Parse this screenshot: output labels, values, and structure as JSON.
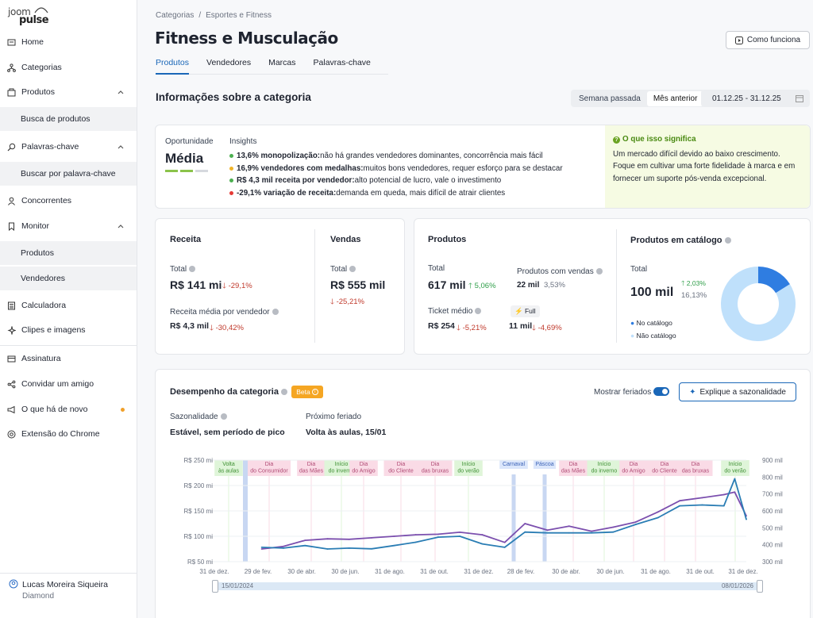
{
  "logo": {
    "line1": "joom",
    "line2": "pulse"
  },
  "sidebar": {
    "items": [
      {
        "label": "Home",
        "icon": "home-icon"
      },
      {
        "label": "Categorias",
        "icon": "sitemap-icon"
      },
      {
        "label": "Produtos",
        "icon": "box-icon"
      },
      {
        "label": "Busca de produtos"
      },
      {
        "label": "Palavras-chave",
        "icon": "search-icon"
      },
      {
        "label": "Buscar por palavra-chave"
      },
      {
        "label": "Concorrentes",
        "icon": "user-icon"
      },
      {
        "label": "Monitor",
        "icon": "bookmark-icon"
      },
      {
        "label": "Produtos"
      },
      {
        "label": "Vendedores"
      },
      {
        "label": "Calculadora",
        "icon": "calculator-icon"
      },
      {
        "label": "Clipes e imagens",
        "icon": "sparkle-icon"
      },
      {
        "label": "Assinatura",
        "icon": "card-icon"
      },
      {
        "label": "Convidar um amigo",
        "icon": "share-icon"
      },
      {
        "label": "O que há de novo",
        "icon": "megaphone-icon"
      },
      {
        "label": "Extensão do Chrome",
        "icon": "chrome-icon"
      }
    ],
    "user": {
      "name": "Lucas Moreira Siqueira",
      "plan": "Diamond"
    }
  },
  "breadcrumb": [
    "Categorias",
    "/",
    "Esportes e Fitness"
  ],
  "title": "Fitness e Musculação",
  "how_button": "Como funciona",
  "tabs": [
    "Produtos",
    "Vendedores",
    "Marcas",
    "Palavras-chave"
  ],
  "section_title": "Informações sobre a categoria",
  "period": {
    "options": [
      "Semana passada",
      "Mês anterior"
    ],
    "selected": "Mês anterior",
    "range": "01.12.25 - 31.12.25"
  },
  "opportunity": {
    "label": "Oportunidade",
    "value": "Média"
  },
  "insights": {
    "label": "Insights",
    "rows": [
      {
        "bold": "13,6% monopolização:",
        "text": " não há grandes vendedores dominantes, concorrência mais fácil",
        "color": "#4caf50"
      },
      {
        "bold": "16,9% vendedores com medalhas:",
        "text": " muitos bons vendedores, requer esforço para se destacar",
        "color": "#f0b429"
      },
      {
        "bold": "R$ 4,3 mil receita por vendedor:",
        "text": " alto potencial de lucro, vale o investimento",
        "color": "#4caf50"
      },
      {
        "bold": "-29,1% variação de receita:",
        "text": " demanda em queda, mais difícil de atrair clientes",
        "color": "#e53935"
      }
    ]
  },
  "meaning": {
    "title": "O que isso significa",
    "text": "Um mercado difícil devido ao baixo crescimento. Foque em cultivar uma forte fidelidade à marca e em fornecer um suporte pós-venda excepcional."
  },
  "receita": {
    "title": "Receita",
    "total_label": "Total",
    "total": "R$ 141 mi",
    "total_change": "-29,1%",
    "avg_label": "Receita média por vendedor",
    "avg": "R$ 4,3 mil",
    "avg_change": "-30,42%"
  },
  "vendas": {
    "title": "Vendas",
    "total_label": "Total",
    "total": "R$ 555 mil",
    "total_change": "-25,21%"
  },
  "produtos": {
    "title": "Produtos",
    "total_label": "Total",
    "total": "617 mil",
    "total_change": "5,06%",
    "with_sales_label": "Produtos com vendas",
    "with_sales": "22 mil",
    "with_sales_pct": "3,53%",
    "ticket_label": "Ticket médio",
    "ticket": "R$ 254",
    "ticket_change": "-5,21%",
    "full_label": "Full",
    "full": "11 mil",
    "full_change": "-4,69%"
  },
  "catalog": {
    "title": "Produtos em catálogo",
    "total_label": "Total",
    "total": "100 mil",
    "change": "2,03%",
    "pct": "16,13%",
    "legend": [
      "No catálogo",
      "Não catálogo"
    ],
    "share": 0.1613,
    "colors": {
      "in": "#2f7de1",
      "out": "#bfe0fb"
    }
  },
  "performance": {
    "title": "Desempenho da categoria",
    "beta": "Beta",
    "show_holidays_label": "Mostrar feriados",
    "explain_button": "Explique a sazonalidade",
    "seasonality_label": "Sazonalidade",
    "seasonality": "Estável, sem período de pico",
    "next_holiday_label": "Próximo feriado",
    "next_holiday": "Volta às aulas, 15/01"
  },
  "chart_data": {
    "type": "line",
    "x": [
      "2024-03-01",
      "2024-03-31",
      "2024-04-30",
      "2024-05-31",
      "2024-06-30",
      "2024-07-31",
      "2024-08-31",
      "2024-09-30",
      "2024-10-31",
      "2024-11-30",
      "2024-12-31",
      "2025-01-31",
      "2025-02-28",
      "2025-03-31",
      "2025-04-30",
      "2025-05-31",
      "2025-06-30",
      "2025-07-31",
      "2025-08-31",
      "2025-09-30",
      "2025-10-31",
      "2025-11-30",
      "2025-12-15",
      "2025-12-31"
    ],
    "series": [
      {
        "axis": "left",
        "color": "#7b4fae",
        "values": [
          75,
          80,
          92,
          95,
          94,
          97,
          100,
          103,
          104,
          108,
          103,
          88,
          125,
          112,
          120,
          110,
          118,
          128,
          148,
          170,
          176,
          182,
          187,
          140
        ]
      },
      {
        "axis": "right",
        "color": "#2a7db4",
        "values": [
          385,
          380,
          395,
          375,
          380,
          376,
          395,
          415,
          445,
          450,
          405,
          385,
          475,
          470,
          470,
          470,
          475,
          520,
          560,
          630,
          635,
          630,
          790,
          550
        ]
      }
    ],
    "yleft": {
      "min": 50,
      "max": 250,
      "ticks": [
        "R$ 50 mi",
        "R$ 100 mi",
        "R$ 150 mi",
        "R$ 200 mi",
        "R$ 250 mi"
      ]
    },
    "yright": {
      "min": 300,
      "max": 900,
      "ticks": [
        "300 mil",
        "400 mil",
        "500 mil",
        "600 mil",
        "700 mil",
        "800 mil",
        "900 mil"
      ]
    },
    "xticks": [
      "31 de dez.",
      "29 de fev.",
      "30 de abr.",
      "30 de jun.",
      "31 de ago.",
      "31 de out.",
      "31 de dez.",
      "28 de fev.",
      "30 de abr.",
      "30 de jun.",
      "31 de ago.",
      "31 de out.",
      "31 de dez."
    ],
    "holidays": [
      {
        "label": [
          "Volta",
          "às aulas"
        ],
        "type": "green"
      },
      {
        "label": [
          "Dia",
          "do Consumidor"
        ],
        "type": "pink"
      },
      {
        "label": [
          "Dia",
          "das Mães"
        ],
        "type": "pink"
      },
      {
        "label": [
          "Início",
          "do inverno"
        ],
        "type": "green"
      },
      {
        "label": [
          "Dia",
          "do Amigo"
        ],
        "type": "pink"
      },
      {
        "label": [
          "Dia",
          "do Cliente"
        ],
        "type": "pink"
      },
      {
        "label": [
          "Dia",
          "das bruxas"
        ],
        "type": "pink"
      },
      {
        "label": [
          "Início",
          "do verão"
        ],
        "type": "green"
      },
      {
        "label": [
          "Carnaval"
        ],
        "type": "blue"
      },
      {
        "label": [
          "Páscoa"
        ],
        "type": "blue"
      },
      {
        "label": [
          "Dia",
          "das Mães"
        ],
        "type": "pink"
      },
      {
        "label": [
          "Início",
          "do inverno"
        ],
        "type": "green"
      },
      {
        "label": [
          "Dia",
          "do Amigo"
        ],
        "type": "pink"
      },
      {
        "label": [
          "Dia",
          "do Cliente"
        ],
        "type": "pink"
      },
      {
        "label": [
          "Dia",
          "das bruxas"
        ],
        "type": "pink"
      },
      {
        "label": [
          "Início",
          "do verão"
        ],
        "type": "green"
      }
    ],
    "range": {
      "start": "15/01/2024",
      "end": "08/01/2026"
    }
  }
}
